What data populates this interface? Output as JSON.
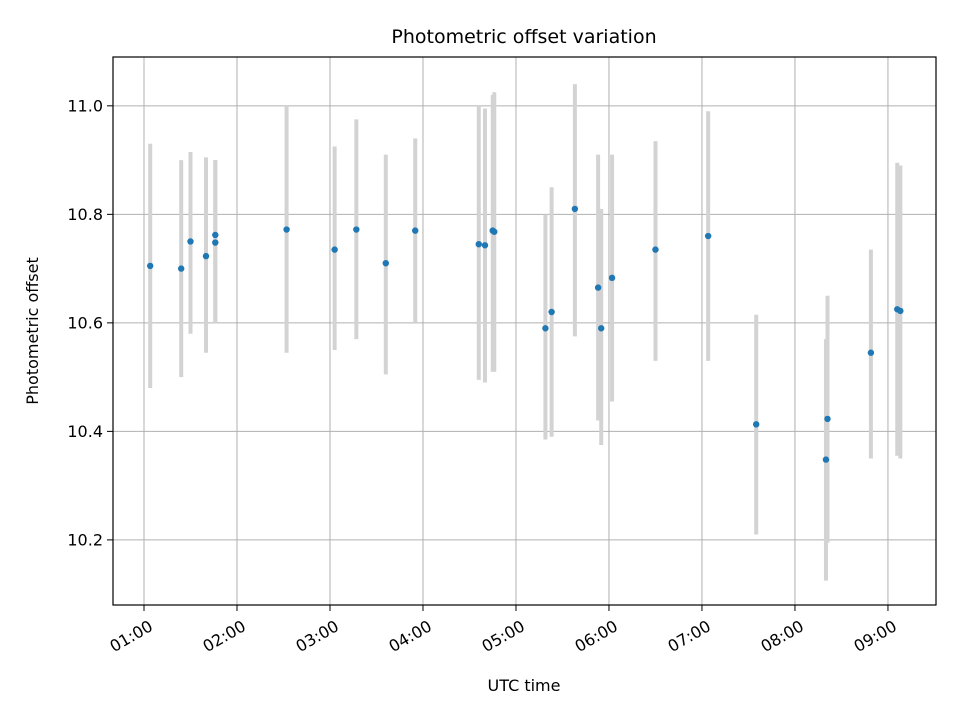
{
  "chart_data": {
    "type": "scatter",
    "title": "Photometric offset variation",
    "xlabel": "UTC time",
    "ylabel": "Photometric offset",
    "x_tick_labels": [
      "01:00",
      "02:00",
      "03:00",
      "04:00",
      "05:00",
      "06:00",
      "07:00",
      "08:00",
      "09:00"
    ],
    "y_tick_labels": [
      "10.2",
      "10.4",
      "10.6",
      "10.8",
      "11.0"
    ],
    "xlim": [
      "00:40",
      "09:31"
    ],
    "ylim": [
      10.08,
      11.09
    ],
    "grid": true,
    "colors": {
      "point": "#1f77b4",
      "errorbar": "#d3d3d3",
      "grid": "#b0b0b0"
    },
    "series": [
      {
        "points": [
          {
            "x": "01:04",
            "y": 10.705,
            "yerr_low": 10.48,
            "yerr_high": 10.93
          },
          {
            "x": "01:24",
            "y": 10.7,
            "yerr_low": 10.5,
            "yerr_high": 10.9
          },
          {
            "x": "01:30",
            "y": 10.75,
            "yerr_low": 10.58,
            "yerr_high": 10.915
          },
          {
            "x": "01:40",
            "y": 10.723,
            "yerr_low": 10.545,
            "yerr_high": 10.905
          },
          {
            "x": "01:46",
            "y": 10.748,
            "yerr_low": 10.6,
            "yerr_high": 10.9
          },
          {
            "x": "01:46",
            "y": 10.762,
            "yerr_low": 10.6,
            "yerr_high": 10.9
          },
          {
            "x": "02:32",
            "y": 10.772,
            "yerr_low": 10.545,
            "yerr_high": 11.0
          },
          {
            "x": "03:03",
            "y": 10.735,
            "yerr_low": 10.55,
            "yerr_high": 10.925
          },
          {
            "x": "03:17",
            "y": 10.772,
            "yerr_low": 10.57,
            "yerr_high": 10.975
          },
          {
            "x": "03:36",
            "y": 10.71,
            "yerr_low": 10.505,
            "yerr_high": 10.91
          },
          {
            "x": "03:55",
            "y": 10.77,
            "yerr_low": 10.6,
            "yerr_high": 10.94
          },
          {
            "x": "04:36",
            "y": 10.745,
            "yerr_low": 10.495,
            "yerr_high": 11.0
          },
          {
            "x": "04:40",
            "y": 10.743,
            "yerr_low": 10.49,
            "yerr_high": 10.995
          },
          {
            "x": "04:45",
            "y": 10.77,
            "yerr_low": 10.51,
            "yerr_high": 11.02
          },
          {
            "x": "04:46",
            "y": 10.768,
            "yerr_low": 10.51,
            "yerr_high": 11.025
          },
          {
            "x": "05:19",
            "y": 10.59,
            "yerr_low": 10.385,
            "yerr_high": 10.8
          },
          {
            "x": "05:23",
            "y": 10.62,
            "yerr_low": 10.39,
            "yerr_high": 10.85
          },
          {
            "x": "05:38",
            "y": 10.81,
            "yerr_low": 10.575,
            "yerr_high": 11.04
          },
          {
            "x": "05:53",
            "y": 10.665,
            "yerr_low": 10.42,
            "yerr_high": 10.91
          },
          {
            "x": "05:55",
            "y": 10.59,
            "yerr_low": 10.375,
            "yerr_high": 10.81
          },
          {
            "x": "06:02",
            "y": 10.683,
            "yerr_low": 10.455,
            "yerr_high": 10.91
          },
          {
            "x": "06:30",
            "y": 10.735,
            "yerr_low": 10.53,
            "yerr_high": 10.935
          },
          {
            "x": "07:04",
            "y": 10.76,
            "yerr_low": 10.53,
            "yerr_high": 10.99
          },
          {
            "x": "07:35",
            "y": 10.413,
            "yerr_low": 10.21,
            "yerr_high": 10.615
          },
          {
            "x": "08:20",
            "y": 10.348,
            "yerr_low": 10.125,
            "yerr_high": 10.57
          },
          {
            "x": "08:21",
            "y": 10.423,
            "yerr_low": 10.195,
            "yerr_high": 10.65
          },
          {
            "x": "08:49",
            "y": 10.545,
            "yerr_low": 10.35,
            "yerr_high": 10.735
          },
          {
            "x": "09:06",
            "y": 10.625,
            "yerr_low": 10.355,
            "yerr_high": 10.895
          },
          {
            "x": "09:08",
            "y": 10.622,
            "yerr_low": 10.35,
            "yerr_high": 10.89
          }
        ]
      }
    ]
  }
}
